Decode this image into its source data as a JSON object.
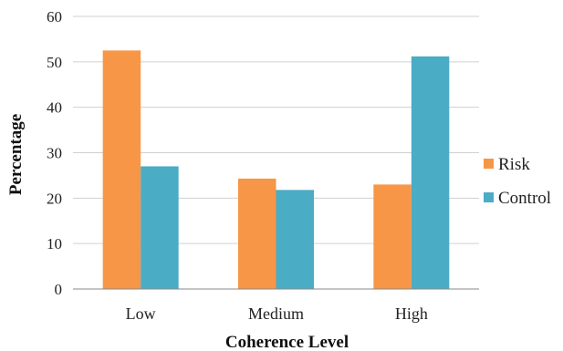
{
  "chart_data": {
    "type": "bar",
    "title": "",
    "xlabel": "Coherence Level",
    "ylabel": "Percentage",
    "ylim": [
      0,
      60
    ],
    "yticks": [
      0,
      10,
      20,
      30,
      40,
      50,
      60
    ],
    "grid": true,
    "legend_position": "right",
    "categories": [
      "Low",
      "Medium",
      "High"
    ],
    "series": [
      {
        "name": "Risk",
        "color": "#F79646",
        "values": [
          52.5,
          24.3,
          23.0
        ]
      },
      {
        "name": "Control",
        "color": "#4BACC6",
        "values": [
          27.0,
          21.8,
          51.2
        ]
      }
    ]
  }
}
